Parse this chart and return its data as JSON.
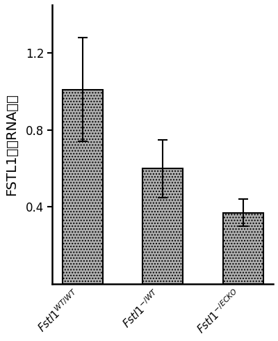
{
  "categories_main": [
    "Fstl1",
    "Fstl1",
    "Fstl1"
  ],
  "categories_super": [
    "WT/WT",
    "-/WT",
    "-/ECKO"
  ],
  "values": [
    1.01,
    0.6,
    0.37
  ],
  "errors": [
    0.27,
    0.15,
    0.07
  ],
  "bar_color": "#b0b0b0",
  "bar_edgecolor": "#000000",
  "hatch": "....",
  "ylim": [
    0,
    1.45
  ],
  "yticks": [
    0.4,
    0.8,
    1.2
  ],
  "ylabel": "FSTL1信使RNA水平",
  "ylabel_fontsize": 14,
  "tick_fontsize": 12,
  "xlabel_fontsize": 11,
  "bar_width": 0.5,
  "figsize": [
    4.0,
    4.9
  ],
  "dpi": 100,
  "background_color": "#ffffff"
}
